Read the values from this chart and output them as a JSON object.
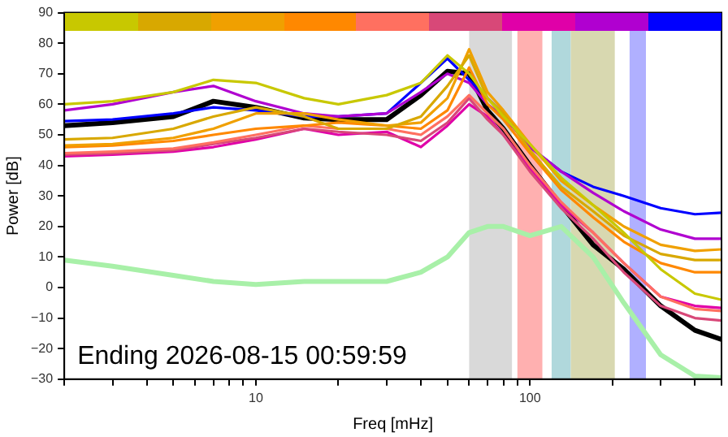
{
  "chart_data": {
    "type": "line",
    "xlabel": "Freq [mHz]",
    "ylabel": "Power [dB]",
    "log": "x",
    "x": [
      2,
      3,
      5,
      7,
      10,
      15,
      20,
      30,
      40,
      50,
      60,
      70,
      80,
      100,
      130,
      170,
      220,
      300,
      400,
      500
    ],
    "series": [
      {
        "color": "#c8c800",
        "values": [
          60,
          61,
          64,
          68,
          67,
          62,
          60,
          63,
          67,
          76,
          70,
          62,
          56,
          47,
          36,
          27,
          18,
          6,
          -2,
          -4
        ]
      },
      {
        "color": "#d8a800",
        "values": [
          48.5,
          49,
          52,
          56,
          59,
          56,
          52,
          52,
          56,
          66,
          76,
          62,
          57,
          45,
          33,
          25,
          17,
          11,
          9,
          9
        ]
      },
      {
        "color": "#f0a000",
        "values": [
          46.5,
          47,
          49,
          52,
          57,
          57,
          55,
          53,
          54,
          62,
          78,
          64,
          58,
          47,
          35,
          27,
          20,
          14,
          12,
          12.5
        ]
      },
      {
        "color": "#ff8800",
        "values": [
          46,
          46.5,
          48,
          50,
          52,
          53,
          54,
          53,
          52,
          58,
          72,
          60,
          55,
          44,
          32,
          23,
          15,
          8,
          5,
          5
        ]
      },
      {
        "color": "#ff7060",
        "values": [
          44,
          44.5,
          45.5,
          47.5,
          50,
          53,
          52,
          52,
          50,
          56,
          63,
          57,
          52,
          40,
          28,
          18,
          8,
          -3,
          -7,
          -7.7
        ]
      },
      {
        "color": "#d84878",
        "values": [
          43.5,
          44,
          45,
          47,
          49,
          52,
          51,
          50,
          48,
          54,
          62,
          55,
          50,
          38,
          26,
          16,
          5,
          -6,
          -10,
          -10.8
        ]
      },
      {
        "color": "#e000a8",
        "values": [
          43,
          43.5,
          44.5,
          46,
          48.5,
          52,
          50,
          51,
          46,
          53,
          60,
          56,
          50,
          39,
          27,
          18,
          8,
          -3,
          -6,
          -6.7
        ]
      },
      {
        "color": "#b000d0",
        "values": [
          58,
          60,
          64,
          66,
          61,
          57,
          56,
          57,
          64,
          70,
          67,
          60,
          56,
          46,
          38,
          31,
          25,
          19,
          16,
          16
        ]
      },
      {
        "color": "#0000ff",
        "values": [
          54.5,
          55,
          57,
          59,
          58,
          56,
          56,
          57,
          67,
          75,
          68,
          62,
          57,
          46,
          38,
          33,
          30,
          26,
          24,
          24.5
        ]
      },
      {
        "color": "#000000",
        "values": [
          53,
          54,
          56,
          61,
          59,
          55.5,
          55,
          55,
          63,
          70.8,
          70,
          58,
          52,
          40,
          27,
          14,
          6,
          -6,
          -14,
          -17
        ]
      },
      {
        "color": "#a8f0a8",
        "values": [
          9,
          7,
          4,
          2,
          1,
          2,
          2,
          2,
          5,
          10,
          18,
          20,
          20,
          17,
          20,
          10,
          -5,
          -22,
          -29,
          -29.5
        ]
      }
    ],
    "bands": [
      {
        "axis": "x",
        "from": 60,
        "to": 86,
        "color": "#d9d9d9"
      },
      {
        "axis": "x",
        "from": 90,
        "to": 111,
        "color": "#ffb0b0"
      },
      {
        "axis": "x",
        "from": 120,
        "to": 141,
        "color": "#b0d8dc"
      },
      {
        "axis": "x",
        "from": 141,
        "to": 204,
        "color": "#d8d8b0"
      },
      {
        "axis": "x",
        "from": 231,
        "to": 265,
        "color": "#b0b0ff"
      }
    ],
    "annotations": [
      "Ending 2026-08-15 00:59:59"
    ],
    "xlim": [
      2,
      500
    ],
    "xticks": [
      {
        "value": 2,
        "label": null
      },
      {
        "value": 3,
        "label": null
      },
      {
        "value": 4,
        "label": null
      },
      {
        "value": 5,
        "label": null
      },
      {
        "value": 6,
        "label": null
      },
      {
        "value": 7,
        "label": null
      },
      {
        "value": 8,
        "label": null
      },
      {
        "value": 9,
        "label": null
      },
      10,
      {
        "value": 20,
        "label": null
      },
      {
        "value": 30,
        "label": null
      },
      {
        "value": 40,
        "label": null
      },
      {
        "value": 50,
        "label": null
      },
      {
        "value": 60,
        "label": null
      },
      {
        "value": 70,
        "label": null
      },
      {
        "value": 80,
        "label": null
      },
      {
        "value": 90,
        "label": null
      },
      100,
      {
        "value": 200,
        "label": null
      },
      {
        "value": 300,
        "label": null
      },
      {
        "value": 400,
        "label": null
      },
      {
        "value": 500,
        "label": null
      }
    ],
    "ylim": [
      -30,
      90
    ],
    "yticks": [
      {
        "value": -30,
        "label": "−30"
      },
      {
        "value": -20,
        "label": "−20"
      },
      {
        "value": -10,
        "label": "−10"
      },
      0,
      10,
      20,
      30,
      40,
      50,
      60,
      70,
      80,
      90
    ]
  }
}
